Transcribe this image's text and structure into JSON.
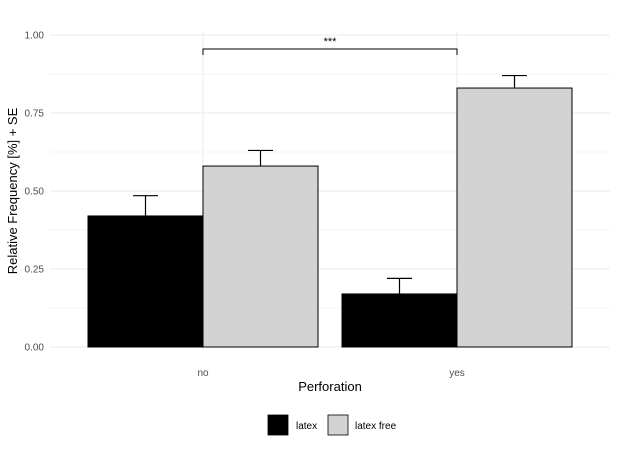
{
  "chart_data": {
    "type": "bar",
    "categories": [
      "no",
      "yes"
    ],
    "series": [
      {
        "name": "latex",
        "values": [
          0.42,
          0.17
        ],
        "se": [
          0.065,
          0.05
        ],
        "color": "#000000"
      },
      {
        "name": "latex free",
        "values": [
          0.58,
          0.83
        ],
        "se": [
          0.05,
          0.04
        ],
        "color": "#d3d3d3"
      }
    ],
    "xlabel": "Perforation",
    "ylabel": "Relative Frequency [%] + SE",
    "ylim": [
      0,
      1
    ],
    "yticks": [
      "0.00",
      "0.25",
      "0.50",
      "0.75",
      "1.00"
    ],
    "grid": true,
    "legend": {
      "position": "bottom"
    },
    "annotations": [
      {
        "type": "significance-bracket",
        "text": "***",
        "from": "no",
        "to": "yes",
        "y": 0.955
      }
    ]
  }
}
